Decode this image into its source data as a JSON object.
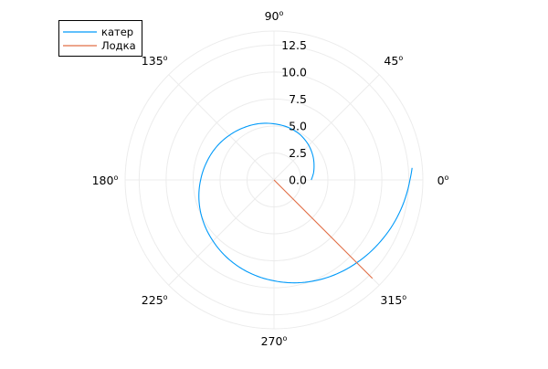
{
  "chart_data": {
    "type": "line",
    "projection": "polar",
    "title": "",
    "radial_axis": {
      "range": [
        0,
        13.8
      ],
      "ticks": [
        0.0,
        2.5,
        5.0,
        7.5,
        10.0,
        12.5
      ],
      "tick_labels": [
        "0.0",
        "2.5",
        "5.0",
        "7.5",
        "10.0",
        "12.5"
      ]
    },
    "angular_axis": {
      "ticks_deg": [
        0,
        45,
        90,
        135,
        180,
        225,
        270,
        315
      ],
      "tick_labels": [
        "0",
        "45",
        "90",
        "135",
        "180",
        "225",
        "270",
        "315"
      ],
      "superscript": "o"
    },
    "grid": true,
    "legend": {
      "position": "top-left"
    },
    "series": [
      {
        "name": "катер",
        "color": "#009af9",
        "curve": "spiral",
        "theta_deg": [
          0,
          5,
          10,
          20,
          30,
          45,
          60,
          75,
          90,
          105,
          120,
          135,
          150,
          165,
          180,
          195,
          210,
          225,
          240,
          255,
          270,
          285,
          300,
          315,
          330,
          345,
          360,
          365
        ],
        "r": [
          3.45,
          3.58,
          3.72,
          3.95,
          4.2,
          4.55,
          4.85,
          5.05,
          5.2,
          5.4,
          5.6,
          5.85,
          6.15,
          6.45,
          6.8,
          7.2,
          7.6,
          8.0,
          8.45,
          8.9,
          9.35,
          9.85,
          10.35,
          10.85,
          11.4,
          12.0,
          12.6,
          12.85
        ]
      },
      {
        "name": "Лодка",
        "color": "#e26f46",
        "curve": "ray",
        "theta_deg": [
          315,
          315
        ],
        "r": [
          0,
          12.9
        ]
      }
    ]
  }
}
